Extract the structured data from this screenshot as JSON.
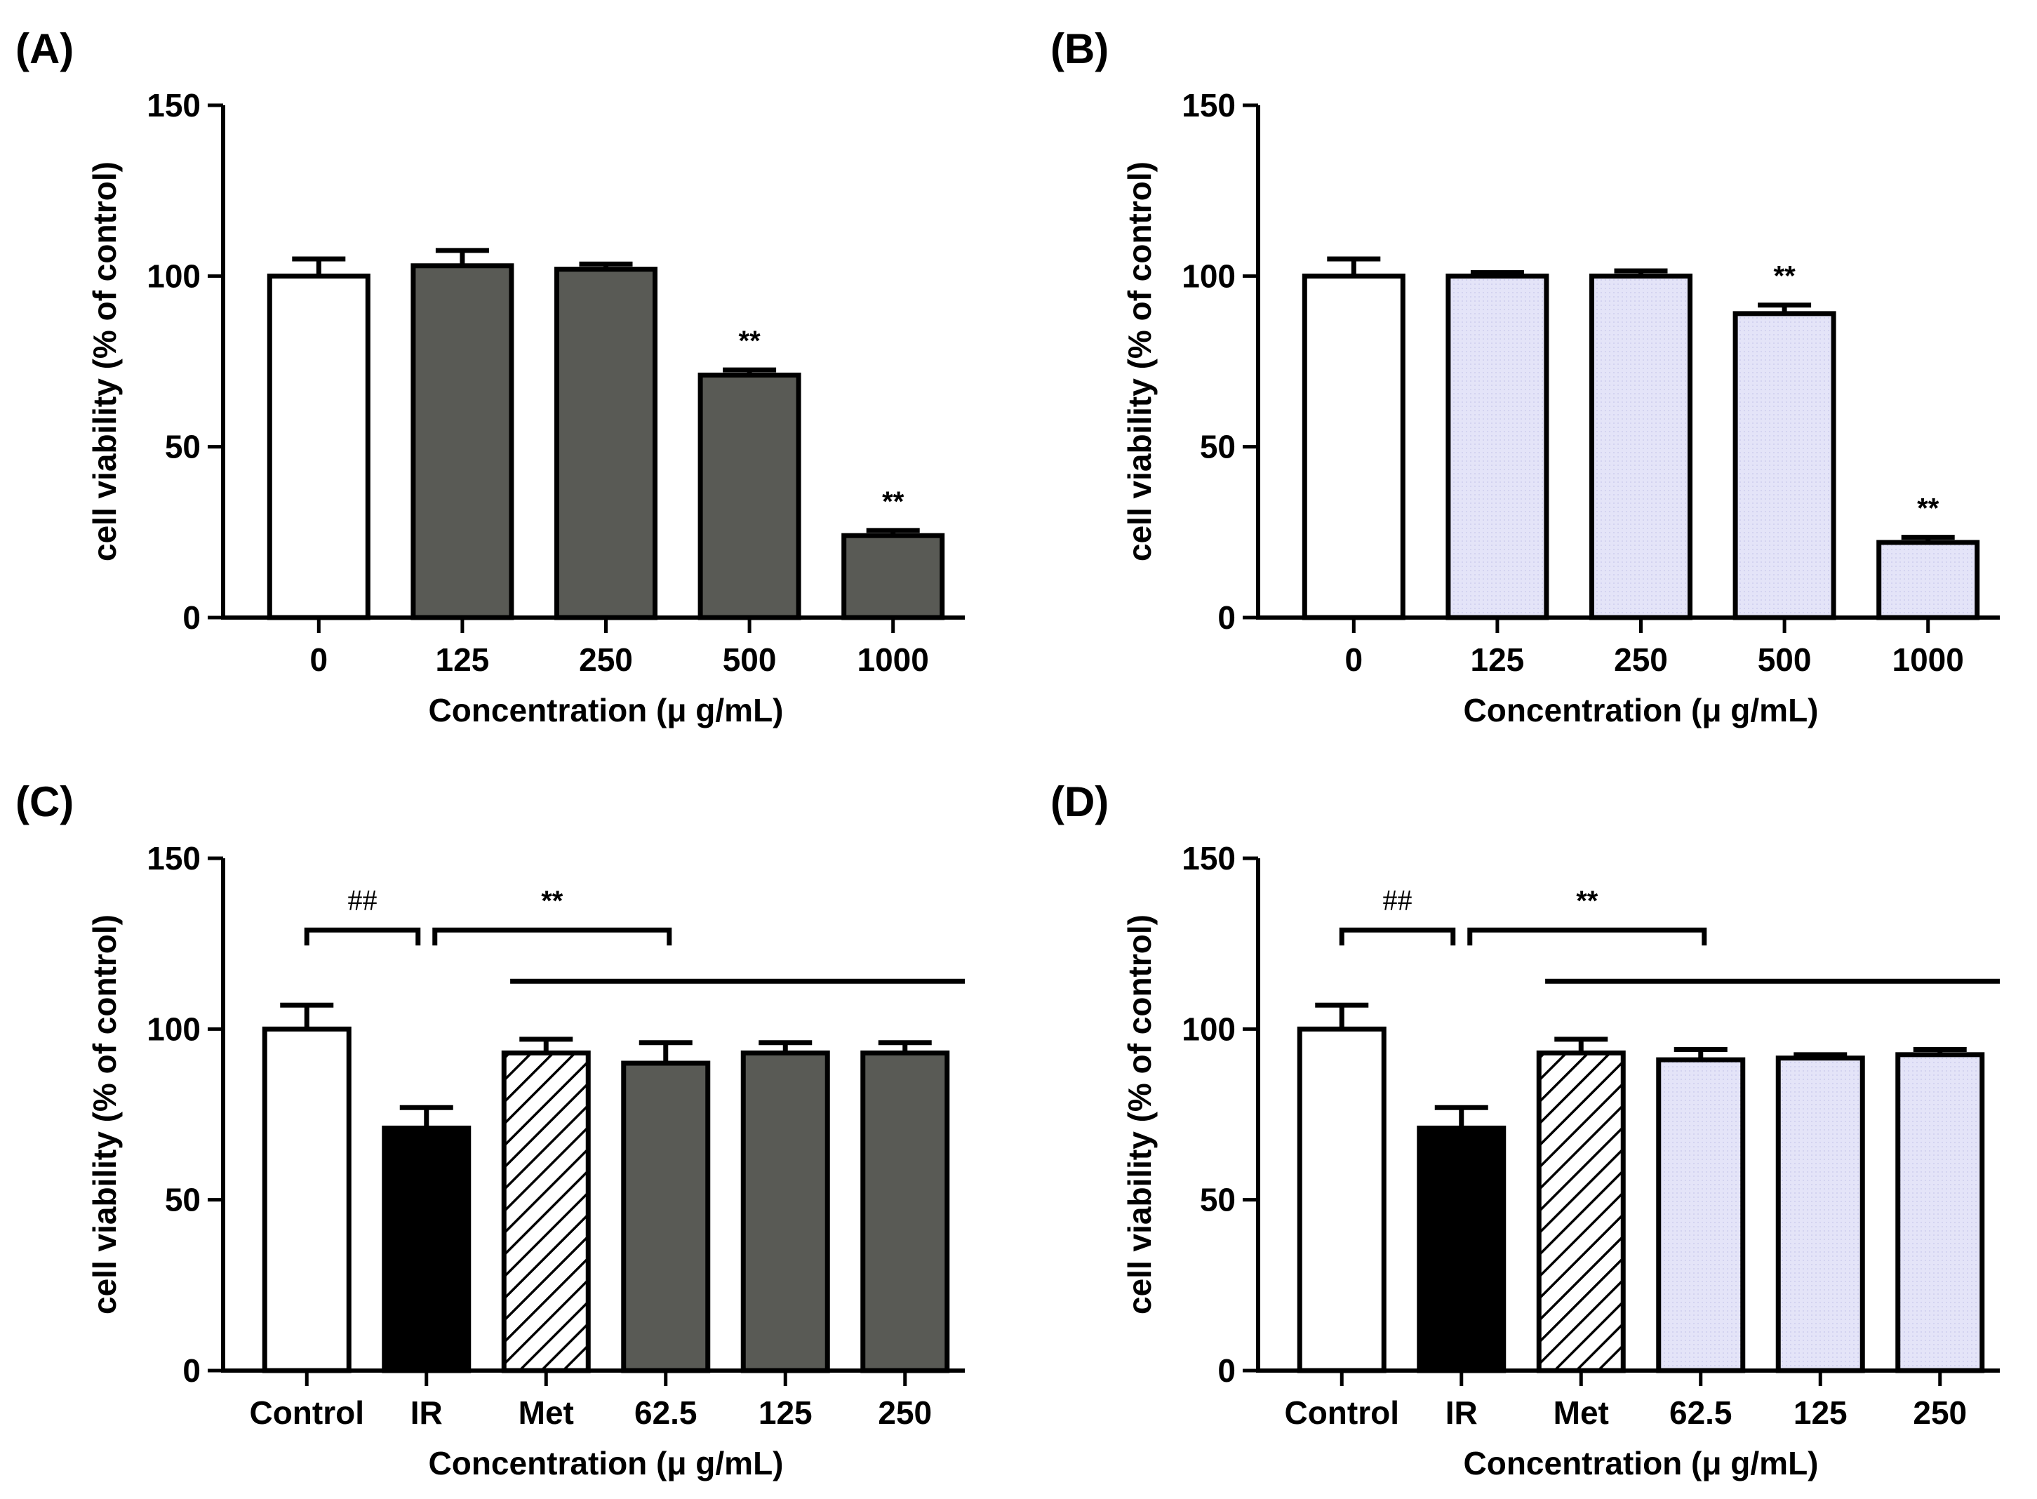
{
  "colors": {
    "white": "#ffffff",
    "black": "#000000",
    "gray": "#595a55",
    "lavender": "#e4e4f8"
  },
  "chart_data": [
    {
      "type": "bar",
      "panel": "(A)",
      "ylabel": "cell viability (% of control)",
      "xlabel": "Concentration (μ g/mL)",
      "ylim": [
        0,
        150
      ],
      "yticks": [
        "0",
        "50",
        "100",
        "150"
      ],
      "categories": [
        "0",
        "125",
        "250",
        "500",
        "1000"
      ],
      "values": [
        100,
        103,
        102,
        71,
        24
      ],
      "errors": [
        5,
        4.5,
        1.5,
        1.5,
        1.5
      ],
      "fills": [
        "white",
        "gray",
        "gray",
        "gray",
        "gray"
      ],
      "significance": [
        {
          "category_index": 3,
          "label": "**"
        },
        {
          "category_index": 4,
          "label": "**"
        }
      ],
      "brackets": []
    },
    {
      "type": "bar",
      "panel": "(B)",
      "ylabel": "cell viability (% of control)",
      "xlabel": "Concentration (μ g/mL)",
      "ylim": [
        0,
        150
      ],
      "yticks": [
        "0",
        "50",
        "100",
        "150"
      ],
      "categories": [
        "0",
        "125",
        "250",
        "500",
        "1000"
      ],
      "values": [
        100,
        100,
        100,
        89,
        22
      ],
      "errors": [
        5,
        1,
        1.5,
        2.5,
        1.5
      ],
      "fills": [
        "white",
        "lavender",
        "lavender",
        "lavender",
        "lavender"
      ],
      "significance": [
        {
          "category_index": 3,
          "label": "**"
        },
        {
          "category_index": 4,
          "label": "**"
        }
      ],
      "brackets": []
    },
    {
      "type": "bar",
      "panel": "(C)",
      "ylabel": "cell viability (% of control)",
      "xlabel": "Concentration (μ g/mL)",
      "ylim": [
        0,
        150
      ],
      "yticks": [
        "0",
        "50",
        "100",
        "150"
      ],
      "categories": [
        "Control",
        "IR",
        "Met",
        "62.5",
        "125",
        "250"
      ],
      "values": [
        100,
        71,
        93,
        90,
        93,
        93
      ],
      "errors": [
        7,
        6,
        4,
        6,
        3,
        3
      ],
      "fills": [
        "white",
        "black",
        "hatch",
        "gray",
        "gray",
        "gray"
      ],
      "significance": [],
      "brackets": [
        {
          "type": "bracket",
          "from": 0,
          "to": 1,
          "value": 129,
          "label": "##",
          "label_style": "hash"
        },
        {
          "type": "bracket",
          "from": 1,
          "to": 3.1,
          "value": 129,
          "label": "**",
          "label_style": "star"
        },
        {
          "type": "line",
          "from": 1.7,
          "to": 5.5,
          "value": 114
        }
      ]
    },
    {
      "type": "bar",
      "panel": "(D)",
      "ylabel": "cell viability (% of control)",
      "xlabel": "Concentration (μ g/mL)",
      "ylim": [
        0,
        150
      ],
      "yticks": [
        "0",
        "50",
        "100",
        "150"
      ],
      "categories": [
        "Control",
        "IR",
        "Met",
        "62.5",
        "125",
        "250"
      ],
      "values": [
        100,
        71,
        93,
        91,
        91.5,
        92.5
      ],
      "errors": [
        7,
        6,
        4,
        3,
        1,
        1.5
      ],
      "fills": [
        "white",
        "black",
        "hatch",
        "lavender",
        "lavender",
        "lavender"
      ],
      "significance": [],
      "brackets": [
        {
          "type": "bracket",
          "from": 0,
          "to": 1,
          "value": 129,
          "label": "##",
          "label_style": "hash"
        },
        {
          "type": "bracket",
          "from": 1,
          "to": 3.1,
          "value": 129,
          "label": "**",
          "label_style": "star"
        },
        {
          "type": "line",
          "from": 1.7,
          "to": 5.5,
          "value": 114
        }
      ]
    }
  ]
}
